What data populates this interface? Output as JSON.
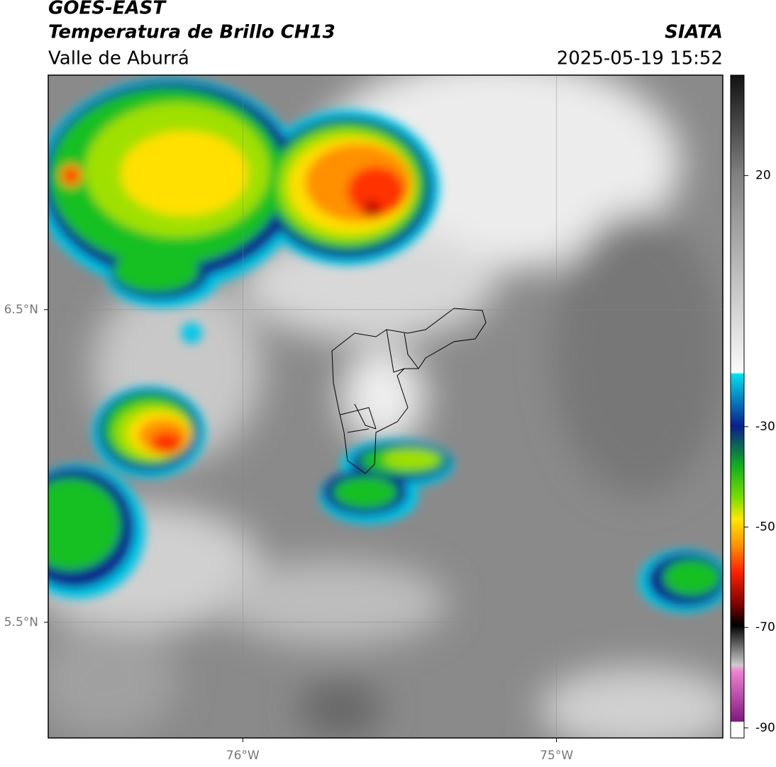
{
  "header": {
    "line1": "GOES-EAST",
    "title": "Temperatura de Brillo CH13",
    "source": "SIATA",
    "region": "Valle de Aburrá",
    "datetime": "2025-05-19 15:52"
  },
  "map": {
    "xlim": [
      -76.62,
      -74.47
    ],
    "ylim": [
      5.13,
      7.25
    ],
    "xticks": [
      {
        "value": -76,
        "label": "76°W"
      },
      {
        "value": -75,
        "label": "75°W"
      }
    ],
    "yticks": [
      {
        "value": 6.5,
        "label": "6.5°N"
      },
      {
        "value": 5.5,
        "label": "5.5°N"
      }
    ],
    "grid": true,
    "colorbar": {
      "clim": [
        -92,
        40
      ],
      "ticks": [
        20,
        -30,
        -50,
        -70,
        -90
      ]
    }
  }
}
